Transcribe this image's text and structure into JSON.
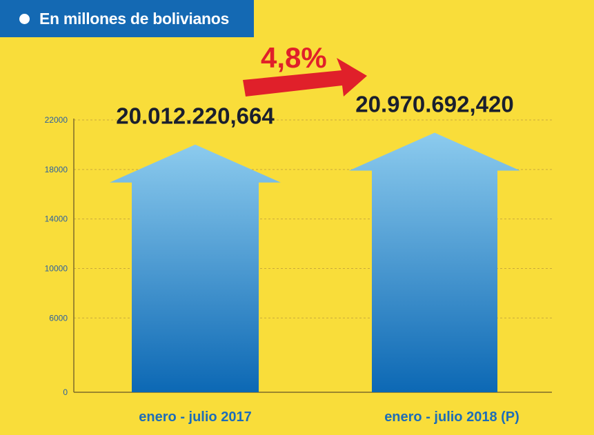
{
  "header": {
    "label": "En millones de bolivianos"
  },
  "growth": {
    "label": "4,8%"
  },
  "colors": {
    "background": "#f9dd3a",
    "header_band": "#1469b3",
    "arrow_top": "#8ccbee",
    "arrow_bottom": "#0c68b4",
    "growth_arrow": "#e0202a",
    "value_text": "#1a1f2e",
    "category_text": "#1d6db8"
  },
  "chart_data": {
    "type": "bar",
    "title": "",
    "xlabel": "",
    "ylabel": "",
    "categories": [
      "enero - julio 2017",
      "enero - julio 2018 (P)"
    ],
    "values": [
      20012.220664,
      20970.69242
    ],
    "value_labels": [
      "20.012.220,664",
      "20.970.692,420"
    ],
    "ylim": [
      0,
      22000
    ],
    "yticks": [
      0,
      6000,
      10000,
      14000,
      18000,
      22000
    ],
    "grid": true,
    "legend": "none"
  }
}
